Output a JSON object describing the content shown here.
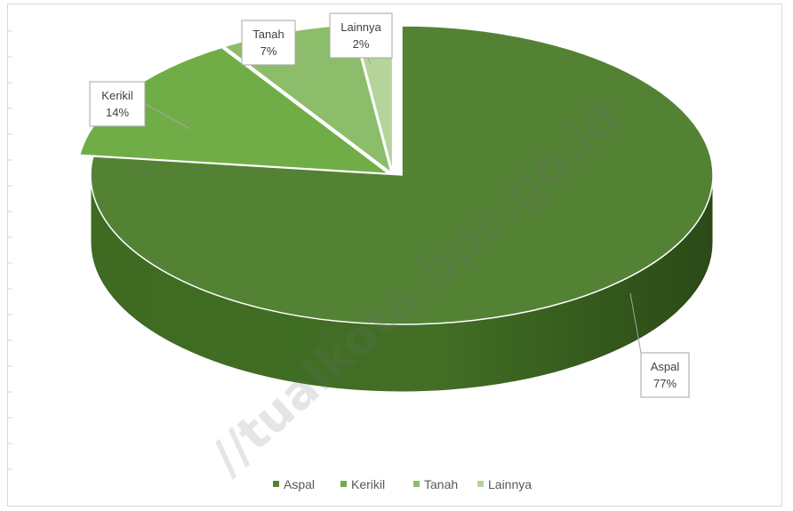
{
  "chart_data": {
    "type": "pie",
    "style": "3d-exploded",
    "categories": [
      "Aspal",
      "Kerikil",
      "Tanah",
      "Lainnya"
    ],
    "values": [
      77,
      14,
      7,
      2
    ],
    "labels": [
      "Aspal\n77%",
      "Kerikil\n14%",
      "Tanah\n7%",
      "Lainnya\n2%"
    ],
    "colors": [
      "#548235",
      "#70ad47",
      "#8cbd6a",
      "#b4d49a"
    ],
    "side_color": "#3f6325",
    "legend": {
      "position": "bottom",
      "entries": [
        "Aspal",
        "Kerikil",
        "Tanah",
        "Lainnya"
      ]
    },
    "title": ""
  },
  "watermark": "//tualkota.bps.go.id"
}
